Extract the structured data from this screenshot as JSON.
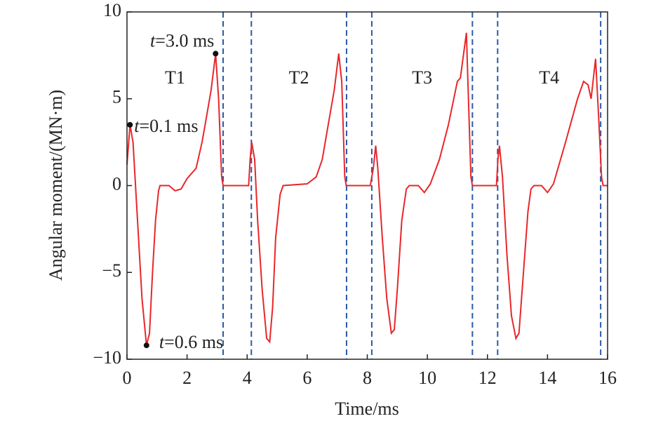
{
  "chart_data": {
    "type": "line",
    "xlabel": "Time/ms",
    "ylabel": "Angular moment/(MN·m)",
    "xlim": [
      0,
      16
    ],
    "ylim": [
      -10,
      10
    ],
    "xticks": [
      0,
      2,
      4,
      6,
      8,
      10,
      12,
      14,
      16
    ],
    "yticks": [
      {
        "value": -10,
        "label": "−10"
      },
      {
        "value": -5,
        "label": "−5"
      },
      0,
      5,
      10
    ],
    "color": "#e8272a",
    "marker_color": "#2a5aa6",
    "x": [
      0,
      0.1,
      0.2,
      0.35,
      0.5,
      0.65,
      0.75,
      0.85,
      0.95,
      1.05,
      1.1,
      1.4,
      1.6,
      1.8,
      2.0,
      2.3,
      2.5,
      2.65,
      2.8,
      2.95,
      3.05,
      3.15,
      3.2,
      4.05,
      4.1,
      4.15,
      4.25,
      4.35,
      4.5,
      4.65,
      4.75,
      4.85,
      4.95,
      5.1,
      5.2,
      6.0,
      6.3,
      6.5,
      6.7,
      6.9,
      7.05,
      7.15,
      7.25,
      7.3,
      8.1,
      8.2,
      8.28,
      8.35,
      8.5,
      8.65,
      8.8,
      8.9,
      9.0,
      9.15,
      9.3,
      9.4,
      9.7,
      9.9,
      10.1,
      10.4,
      10.7,
      11.0,
      11.1,
      11.2,
      11.3,
      11.35,
      11.45,
      11.5,
      12.3,
      12.35,
      12.4,
      12.5,
      12.65,
      12.8,
      12.95,
      13.05,
      13.2,
      13.35,
      13.45,
      13.55,
      13.8,
      14.0,
      14.2,
      14.6,
      15.0,
      15.2,
      15.35,
      15.45,
      15.6,
      15.7,
      15.8,
      15.85,
      16
    ],
    "values": [
      1.2,
      3.5,
      2.5,
      -2,
      -6.5,
      -9.2,
      -8.5,
      -5,
      -2,
      -0.3,
      0,
      0,
      -0.3,
      -0.2,
      0.4,
      1.0,
      2.5,
      4.0,
      5.5,
      7.6,
      5,
      0.5,
      0,
      0,
      1.5,
      2.5,
      1.5,
      -2,
      -6,
      -8.8,
      -9.0,
      -7,
      -3,
      -0.5,
      0,
      0.1,
      0.5,
      1.5,
      3.5,
      5.5,
      7.6,
      6,
      0.5,
      0,
      0,
      1,
      2.3,
      1,
      -3,
      -6.5,
      -8.5,
      -8.3,
      -6,
      -2,
      -0.2,
      0,
      0,
      -0.4,
      0.1,
      1.5,
      3.5,
      6,
      6.2,
      7.5,
      8.8,
      6,
      0.5,
      0,
      0,
      1.5,
      2.3,
      0.5,
      -4,
      -7.5,
      -8.8,
      -8.5,
      -5,
      -1.5,
      -0.2,
      0,
      0,
      -0.4,
      0.1,
      2.5,
      5,
      6,
      5.8,
      5,
      7.3,
      4,
      0.5,
      0,
      0
    ],
    "markers": [
      3.2,
      4.14,
      7.31,
      8.15,
      11.5,
      12.34,
      15.77
    ],
    "segments": [
      "T1",
      "T2",
      "T3",
      "T4"
    ],
    "annotations": [
      {
        "text": "t=0.1 ms",
        "x": 0.1,
        "y": 3.5
      },
      {
        "text": "t=0.6 ms",
        "x": 0.65,
        "y": -9.2
      },
      {
        "text": "t=3.0 ms",
        "x": 2.95,
        "y": 7.6
      }
    ]
  }
}
